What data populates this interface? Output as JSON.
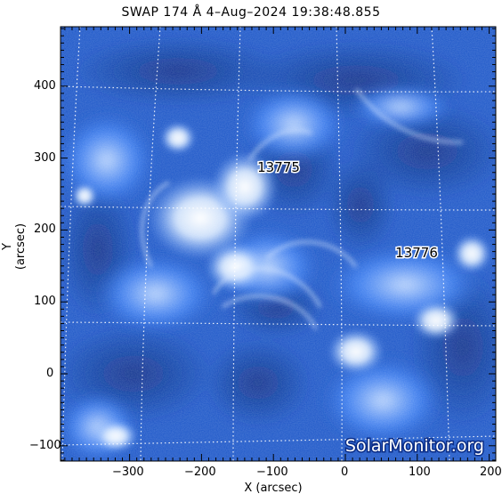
{
  "title": "SWAP 174 Å  4–Aug–2024 19:38:48.855",
  "axes": {
    "xlabel": "X (arcsec)",
    "ylabel": "Y (arcsec)",
    "xticks": [
      "−300",
      "−200",
      "−100",
      "0",
      "100",
      "200"
    ],
    "yticks": [
      "400",
      "300",
      "200",
      "100",
      "0",
      "−100"
    ]
  },
  "regions": [
    {
      "label": "13775"
    },
    {
      "label": "13776"
    }
  ],
  "watermark": "SolarMonitor.org",
  "colors": {
    "background": "#ffffff",
    "image_dark": "#06246a",
    "image_mid": "#1f63d8",
    "image_bright": "#e9f2ff",
    "grid": "#ffffff"
  }
}
